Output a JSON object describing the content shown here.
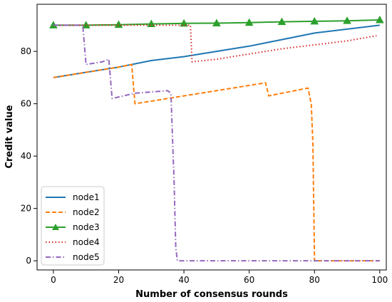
{
  "chart_data": {
    "type": "line",
    "title": "",
    "xlabel": "Number of consensus rounds",
    "ylabel": "Credit value",
    "xlim": [
      -5,
      102
    ],
    "ylim": [
      -3.5,
      98
    ],
    "xticks": [
      0,
      20,
      40,
      60,
      80,
      100
    ],
    "yticks": [
      0,
      20,
      40,
      60,
      80
    ],
    "grid": false,
    "legend": "lower-left",
    "series": [
      {
        "name": "node1",
        "color": "#1f77b4",
        "dash": "solid",
        "marker": "none",
        "points": [
          [
            0,
            70
          ],
          [
            10,
            72
          ],
          [
            20,
            74
          ],
          [
            30,
            76.5
          ],
          [
            40,
            78
          ],
          [
            50,
            80
          ],
          [
            60,
            82
          ],
          [
            70,
            84.5
          ],
          [
            80,
            87
          ],
          [
            90,
            88.5
          ],
          [
            100,
            90
          ]
        ]
      },
      {
        "name": "node2",
        "color": "#ff7f0e",
        "dash": "dashed",
        "marker": "none",
        "points": [
          [
            0,
            70
          ],
          [
            10,
            72
          ],
          [
            20,
            74
          ],
          [
            24,
            75
          ],
          [
            25,
            60
          ],
          [
            30,
            61
          ],
          [
            40,
            63
          ],
          [
            50,
            65
          ],
          [
            60,
            67
          ],
          [
            65,
            68
          ],
          [
            66,
            63
          ],
          [
            70,
            64
          ],
          [
            78,
            66
          ],
          [
            79,
            60
          ],
          [
            79.5,
            45
          ],
          [
            80,
            0
          ],
          [
            100,
            0
          ]
        ]
      },
      {
        "name": "node3",
        "color": "#2ca02c",
        "dash": "solid",
        "marker": "triangle",
        "points": [
          [
            0,
            90
          ],
          [
            10,
            90
          ],
          [
            20,
            90.2
          ],
          [
            30,
            90.5
          ],
          [
            40,
            90.7
          ],
          [
            50,
            90.8
          ],
          [
            60,
            91
          ],
          [
            70,
            91.3
          ],
          [
            80,
            91.5
          ],
          [
            90,
            91.7
          ],
          [
            100,
            92
          ]
        ],
        "marker_x": [
          0,
          10,
          20,
          30,
          40,
          50,
          60,
          70,
          80,
          90,
          100
        ]
      },
      {
        "name": "node4",
        "color": "#d62728",
        "dash": "dotted",
        "marker": "none",
        "points": [
          [
            0,
            90
          ],
          [
            10,
            90
          ],
          [
            20,
            90
          ],
          [
            30,
            90
          ],
          [
            40,
            90
          ],
          [
            42,
            90
          ],
          [
            42.5,
            76
          ],
          [
            50,
            77
          ],
          [
            60,
            79
          ],
          [
            70,
            81
          ],
          [
            80,
            82.5
          ],
          [
            90,
            84
          ],
          [
            99,
            86
          ]
        ]
      },
      {
        "name": "node5",
        "color": "#9467bd",
        "dash": "dashdot",
        "marker": "none",
        "points": [
          [
            0,
            90
          ],
          [
            9,
            90
          ],
          [
            10,
            75
          ],
          [
            15,
            76
          ],
          [
            17,
            77
          ],
          [
            18,
            62
          ],
          [
            25,
            64
          ],
          [
            30,
            64.5
          ],
          [
            35,
            65
          ],
          [
            36,
            64
          ],
          [
            37,
            30
          ],
          [
            37.5,
            5
          ],
          [
            38,
            0
          ],
          [
            60,
            0
          ],
          [
            80,
            0
          ],
          [
            100,
            0
          ]
        ]
      }
    ]
  }
}
